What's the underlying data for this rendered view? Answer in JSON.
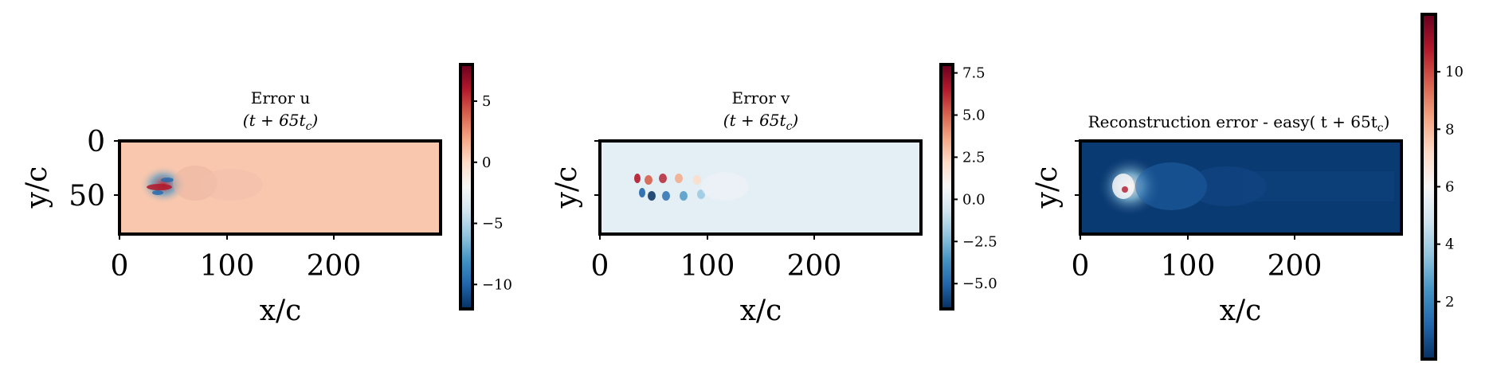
{
  "chart_data": [
    {
      "type": "heatmap",
      "title_line1": "Error u",
      "title_line2": "(t + 65t",
      "title_sub": "c",
      "title_close": ")",
      "xlabel": "x/c",
      "ylabel": "y/c",
      "x_ticks": [
        "0",
        "100",
        "200"
      ],
      "y_ticks": [
        "0",
        "50"
      ],
      "xlim": [
        0,
        300
      ],
      "ylim": [
        90,
        0
      ],
      "colormap": "RdBu_r",
      "background_color": "#f8c7ae",
      "colorbar": {
        "ticks": [
          "5",
          "0",
          "−5",
          "−10"
        ],
        "values": [
          5,
          0,
          -5,
          -10
        ],
        "range": [
          -12,
          8
        ]
      }
    },
    {
      "type": "heatmap",
      "title_line1": "Error v",
      "title_line2": "(t + 65t",
      "title_sub": "c",
      "title_close": ")",
      "xlabel": "x/c",
      "ylabel": "y/c",
      "x_ticks": [
        "0",
        "100",
        "200"
      ],
      "y_ticks": [
        "",
        ""
      ],
      "xlim": [
        0,
        300
      ],
      "ylim": [
        90,
        0
      ],
      "colormap": "RdBu_r",
      "background_color": "#e3eef5",
      "colorbar": {
        "ticks": [
          "7.5",
          "5.0",
          "2.5",
          "0.0",
          "−2.5",
          "−5.0"
        ],
        "values": [
          7.5,
          5.0,
          2.5,
          0.0,
          -2.5,
          -5.0
        ],
        "range": [
          -6.5,
          8.0
        ]
      }
    },
    {
      "type": "heatmap",
      "title_line1": "Reconstruction error - easy( t + 65t",
      "title_sub": "c",
      "title_close": ")",
      "xlabel": "x/c",
      "ylabel": "y/c",
      "x_ticks": [
        "0",
        "100",
        "200"
      ],
      "y_ticks": [
        "",
        ""
      ],
      "xlim": [
        0,
        300
      ],
      "ylim": [
        90,
        0
      ],
      "colormap": "RdBu_r",
      "background_color": "#0a3a72",
      "colorbar": {
        "ticks": [
          "10",
          "8",
          "6",
          "4",
          "2"
        ],
        "values": [
          10,
          8,
          6,
          4,
          2
        ],
        "range": [
          0,
          12
        ]
      }
    }
  ]
}
